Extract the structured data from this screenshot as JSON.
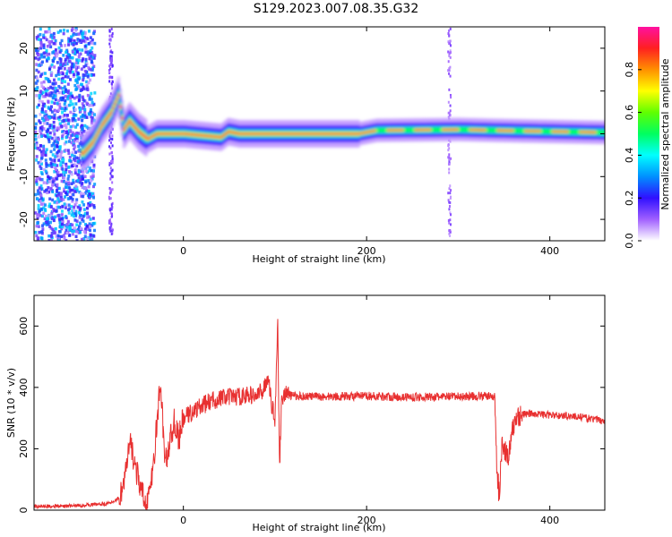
{
  "title": "S129.2023.007.08.35.G32",
  "chart_data": [
    {
      "type": "heatmap",
      "xlabel": "Height of straight line (km)",
      "ylabel": "Frequency (Hz)",
      "xlim": [
        -163,
        460
      ],
      "ylim": [
        -25,
        25
      ],
      "xticks": [
        0,
        200,
        400
      ],
      "yticks": [
        -20,
        -10,
        0,
        10,
        20
      ],
      "colorbar": {
        "label": "Normalized spectral amplitude",
        "range": [
          0,
          1
        ],
        "ticks": [
          "0.0",
          "0.2",
          "0.4",
          "0.6",
          "0.8"
        ],
        "colormap": [
          "#ffffff",
          "#a060ff",
          "#3010ff",
          "#0090ff",
          "#00ffff",
          "#00ff60",
          "#60ff00",
          "#ffff00",
          "#ff9000",
          "#ff2020",
          "#ff10a0"
        ]
      },
      "ridge": [
        {
          "x": -110,
          "f": -4.5
        },
        {
          "x": -100,
          "f": -2
        },
        {
          "x": -90,
          "f": 2
        },
        {
          "x": -80,
          "f": 5
        },
        {
          "x": -72,
          "f": 9
        },
        {
          "x": -66,
          "f": 1
        },
        {
          "x": -60,
          "f": 3
        },
        {
          "x": -50,
          "f": 0.5
        },
        {
          "x": -40,
          "f": -1.2
        },
        {
          "x": -30,
          "f": 0
        },
        {
          "x": 0,
          "f": 0
        },
        {
          "x": 25,
          "f": -0.5
        },
        {
          "x": 40,
          "f": -0.8
        },
        {
          "x": 48,
          "f": 0.5
        },
        {
          "x": 60,
          "f": 0
        },
        {
          "x": 190,
          "f": 0
        },
        {
          "x": 210,
          "f": 0.8
        },
        {
          "x": 300,
          "f": 1
        },
        {
          "x": 340,
          "f": 0.8
        },
        {
          "x": 460,
          "f": 0.3
        }
      ]
    },
    {
      "type": "line",
      "xlabel": "Height of straight line (km)",
      "ylabel": "SNR (10 * v/v)",
      "xlim": [
        -163,
        460
      ],
      "ylim": [
        0,
        700
      ],
      "xticks": [
        0,
        200,
        400
      ],
      "yticks": [
        0,
        200,
        400,
        600
      ],
      "color": "#e83030",
      "series": [
        {
          "x": [
            -163,
            -120,
            -100,
            -80,
            -70,
            -65,
            -62,
            -58,
            -50,
            -42,
            -35,
            -30,
            -25,
            -22,
            -20,
            -15,
            -10,
            -5,
            0,
            10,
            20,
            30,
            40,
            50,
            60,
            70,
            80,
            88,
            92,
            96,
            100,
            103,
            105,
            107,
            110,
            120,
            150,
            200,
            250,
            300,
            330,
            340,
            342,
            345,
            348,
            350,
            355,
            360,
            365,
            370,
            380,
            400,
            430,
            460
          ],
          "y": [
            12,
            14,
            18,
            22,
            40,
            90,
            140,
            220,
            110,
            20,
            80,
            240,
            420,
            260,
            150,
            220,
            290,
            230,
            300,
            320,
            340,
            355,
            365,
            368,
            370,
            375,
            372,
            395,
            440,
            350,
            300,
            620,
            120,
            360,
            380,
            372,
            370,
            372,
            368,
            370,
            372,
            370,
            140,
            40,
            250,
            200,
            170,
            270,
            310,
            312,
            315,
            310,
            305,
            290
          ]
        }
      ]
    }
  ]
}
